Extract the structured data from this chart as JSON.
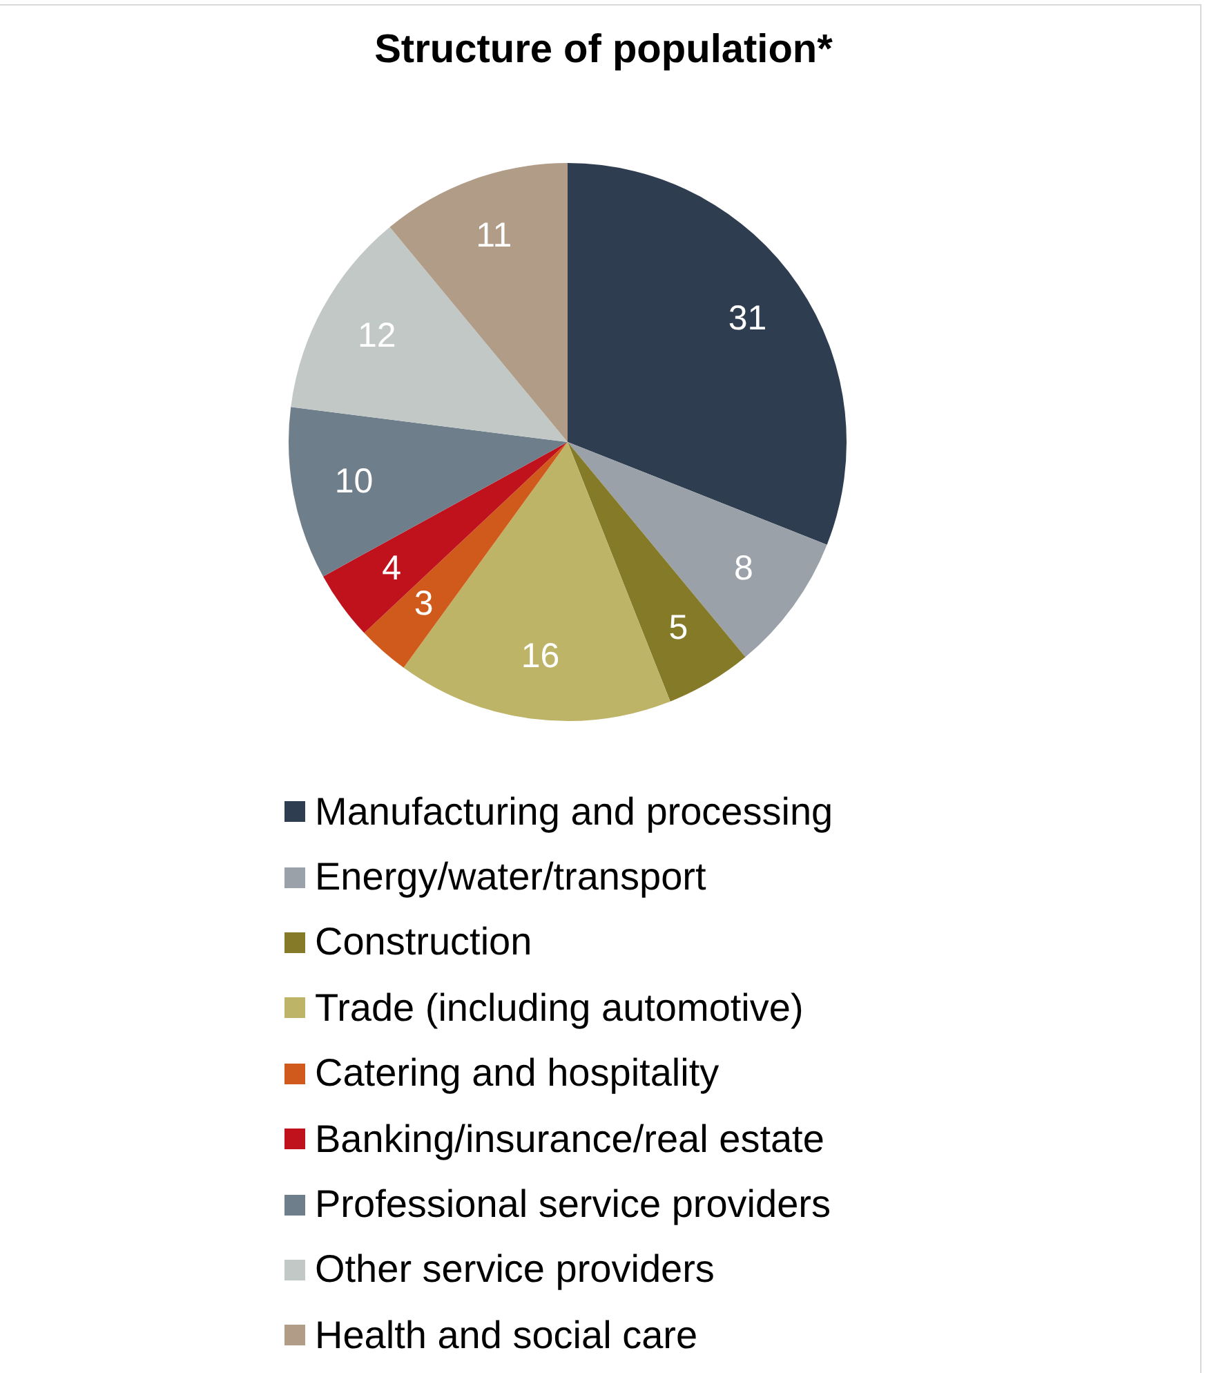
{
  "chart_data": {
    "type": "pie",
    "title": "Structure of population*",
    "categories": [
      "Manufacturing and processing",
      "Energy/water/transport",
      "Construction",
      "Trade (including automotive)",
      "Catering and hospitality",
      "Banking/insurance/real estate",
      "Professional service providers",
      "Other service providers",
      "Health and social care"
    ],
    "values": [
      31,
      8,
      5,
      16,
      3,
      4,
      10,
      12,
      11
    ],
    "colors": [
      "#2e3d4f",
      "#9aa1a8",
      "#857a28",
      "#bdb468",
      "#d05a1c",
      "#c0121c",
      "#6f7e8b",
      "#c1c8c6",
      "#b09c87"
    ],
    "data_labels": true,
    "legend": "bottom"
  }
}
